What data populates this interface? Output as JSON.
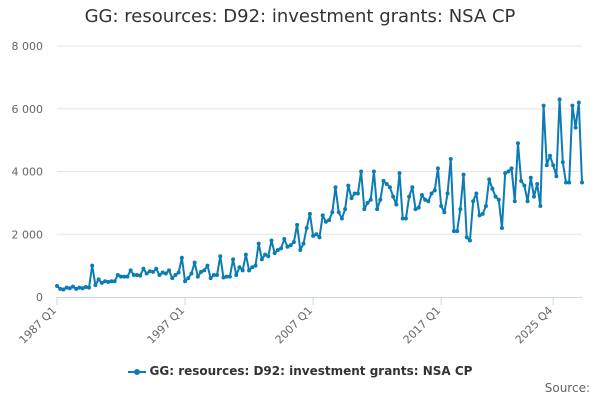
{
  "chart_data": {
    "type": "line",
    "title": "GG: resources: D92: investment grants: NSA CP",
    "xlabel": "",
    "ylabel": "",
    "ylim": [
      0,
      8000
    ],
    "y_ticks": [
      "0",
      "2 000",
      "4 000",
      "6 000",
      "8 000"
    ],
    "y_tick_values": [
      0,
      2000,
      4000,
      6000,
      8000
    ],
    "x_tick_labels": [
      "1987 Q1",
      "1997 Q1",
      "2007 Q1",
      "2017 Q1",
      "2025 Q4"
    ],
    "x_tick_indices": [
      0,
      40,
      80,
      120,
      155
    ],
    "grid": true,
    "legend_position": "bottom",
    "series": [
      {
        "name": "GG: resources: D92: investment grants: NSA CP",
        "color": "#0c7cb5",
        "values": [
          350,
          260,
          240,
          300,
          280,
          330,
          260,
          300,
          280,
          320,
          300,
          1000,
          380,
          560,
          450,
          500,
          480,
          500,
          500,
          700,
          650,
          650,
          650,
          850,
          700,
          700,
          680,
          900,
          750,
          820,
          800,
          900,
          700,
          780,
          750,
          850,
          600,
          700,
          780,
          1250,
          500,
          600,
          750,
          1100,
          650,
          800,
          850,
          1000,
          600,
          700,
          700,
          1300,
          620,
          650,
          650,
          1200,
          700,
          950,
          850,
          1350,
          850,
          950,
          1000,
          1700,
          1200,
          1350,
          1300,
          1800,
          1400,
          1500,
          1550,
          1850,
          1600,
          1650,
          1750,
          2300,
          1500,
          1700,
          2200,
          2650,
          1950,
          2000,
          1900,
          2600,
          2400,
          2450,
          2700,
          3500,
          2700,
          2500,
          2800,
          3550,
          3150,
          3300,
          3300,
          4000,
          2800,
          3000,
          3100,
          4000,
          2800,
          3100,
          3700,
          3600,
          3500,
          3200,
          2950,
          3950,
          2500,
          2500,
          3200,
          3500,
          2800,
          2850,
          3250,
          3100,
          3050,
          3300,
          3400,
          4100,
          2900,
          2700,
          3300,
          4400,
          2100,
          2100,
          2800,
          3900,
          1900,
          1800,
          3050,
          3300,
          2600,
          2650,
          2900,
          3750,
          3450,
          3200,
          3100,
          2200,
          3950,
          4000,
          4100,
          3050,
          4900,
          3700,
          3550,
          3050,
          3800,
          3200,
          3600,
          2900,
          6100,
          4200,
          4500,
          4200,
          3850,
          6300,
          4300,
          3650,
          3650,
          6100,
          5400,
          6200,
          3650
        ]
      }
    ],
    "source_label": "Source:"
  }
}
